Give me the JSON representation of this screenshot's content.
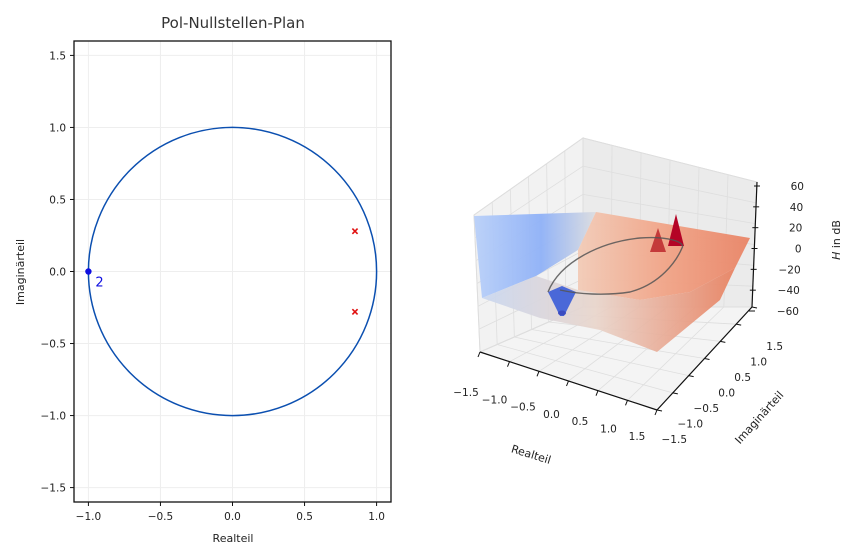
{
  "chart_data": [
    {
      "type": "scatter",
      "title": "Pol-Nullstellen-Plan",
      "xlabel": "Realteil",
      "ylabel": "Imaginärteil",
      "xlim": [
        -1.1,
        1.1
      ],
      "ylim": [
        -1.6,
        1.6
      ],
      "xticks": [
        -1.0,
        -0.5,
        0.0,
        0.5,
        1.0
      ],
      "xtick_labels": [
        "−1.0",
        "−0.5",
        "0.0",
        "0.5",
        "1.0"
      ],
      "yticks": [
        1.5,
        1.0,
        0.5,
        0.0,
        -0.5,
        -1.0,
        -1.5
      ],
      "ytick_labels": [
        "1.5",
        "1.0",
        "0.5",
        "0.0",
        "−0.5",
        "−1.0",
        "−1.5"
      ],
      "grid": true,
      "unit_circle": {
        "center": [
          0,
          0
        ],
        "radius": 1,
        "color": "#0b4fb0"
      },
      "zeros": [
        {
          "x": -1.0,
          "y": 0.0,
          "multiplicity_label": "2"
        }
      ],
      "poles": [
        {
          "x": 0.85,
          "y": 0.28
        },
        {
          "x": 0.85,
          "y": -0.28
        }
      ],
      "zero_color": "#1010e0",
      "pole_color": "#e01010"
    },
    {
      "type": "surface3d",
      "xlabel": "Realteil",
      "ylabel": "Imaginärteil",
      "zlabel_italic": "H",
      "zlabel_rest": " in dB",
      "xlim": [
        -1.5,
        1.5
      ],
      "ylim": [
        -1.5,
        1.5
      ],
      "zlim": [
        -60,
        60
      ],
      "xtick_labels": [
        "−1.5",
        "−1.0",
        "−0.5",
        "0.0",
        "0.5",
        "1.0",
        "1.5"
      ],
      "ytick_labels": [
        "1.5",
        "1.0",
        "0.5",
        "0.0",
        "−0.5",
        "−1.0",
        "−1.5"
      ],
      "ztick_labels": [
        "60",
        "40",
        "20",
        "0",
        "−20",
        "−40",
        "−60"
      ],
      "colormap": "coolwarm",
      "colormap_low": "#3b4cc0",
      "colormap_high": "#b40426",
      "unit_circle_on_surface": true
    }
  ]
}
